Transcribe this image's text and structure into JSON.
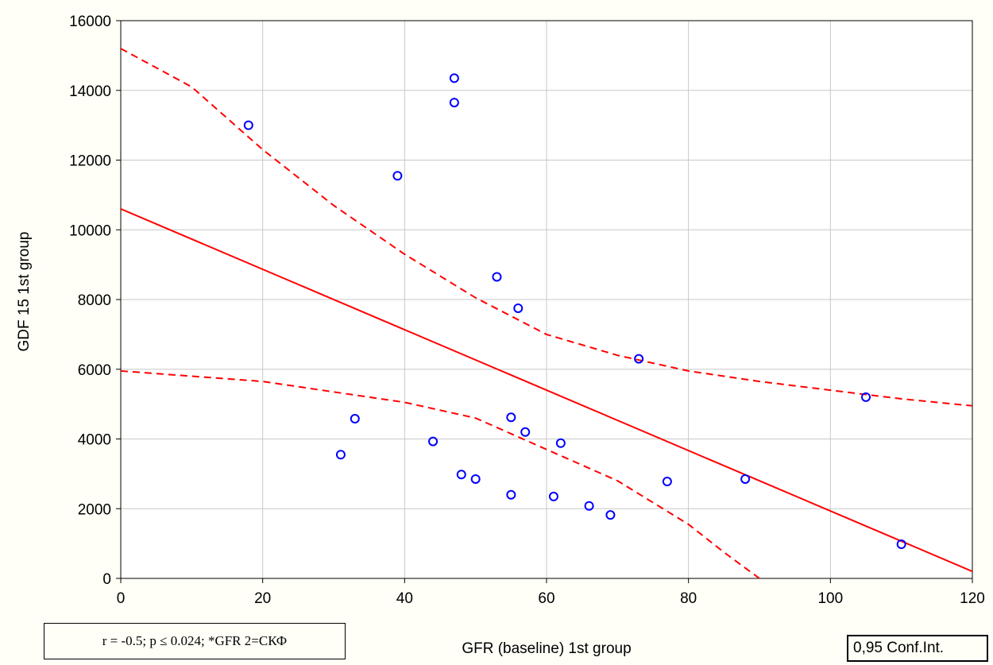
{
  "chart_data": {
    "type": "scatter",
    "xlabel": "GFR (baseline) 1st group",
    "ylabel": "GDF 15  1st group",
    "xlim": [
      0,
      120
    ],
    "ylim": [
      0,
      16000
    ],
    "x_ticks": [
      0,
      20,
      40,
      60,
      80,
      100,
      120
    ],
    "y_ticks": [
      0,
      2000,
      4000,
      6000,
      8000,
      10000,
      12000,
      14000,
      16000
    ],
    "grid": true,
    "points": [
      {
        "x": 18,
        "y": 13000
      },
      {
        "x": 31,
        "y": 3550
      },
      {
        "x": 33,
        "y": 4580
      },
      {
        "x": 39,
        "y": 11550
      },
      {
        "x": 44,
        "y": 3930
      },
      {
        "x": 47,
        "y": 14350
      },
      {
        "x": 47,
        "y": 13650
      },
      {
        "x": 48,
        "y": 2980
      },
      {
        "x": 50,
        "y": 2850
      },
      {
        "x": 53,
        "y": 8650
      },
      {
        "x": 55,
        "y": 4620
      },
      {
        "x": 55,
        "y": 2400
      },
      {
        "x": 56,
        "y": 7750
      },
      {
        "x": 57,
        "y": 4200
      },
      {
        "x": 61,
        "y": 2350
      },
      {
        "x": 62,
        "y": 3880
      },
      {
        "x": 66,
        "y": 2080
      },
      {
        "x": 69,
        "y": 1820
      },
      {
        "x": 73,
        "y": 6300
      },
      {
        "x": 77,
        "y": 2780
      },
      {
        "x": 88,
        "y": 2850
      },
      {
        "x": 105,
        "y": 5200
      },
      {
        "x": 110,
        "y": 980
      }
    ],
    "regression_line": [
      [
        0,
        10600
      ],
      [
        120,
        200
      ]
    ],
    "ci_upper": [
      [
        0,
        15200
      ],
      [
        10,
        14100
      ],
      [
        20,
        12300
      ],
      [
        30,
        10700
      ],
      [
        40,
        9300
      ],
      [
        50,
        8050
      ],
      [
        60,
        7000
      ],
      [
        70,
        6400
      ],
      [
        80,
        5950
      ],
      [
        90,
        5650
      ],
      [
        100,
        5400
      ],
      [
        110,
        5150
      ],
      [
        120,
        4950
      ]
    ],
    "ci_lower": [
      [
        0,
        5950
      ],
      [
        10,
        5800
      ],
      [
        20,
        5650
      ],
      [
        30,
        5350
      ],
      [
        40,
        5050
      ],
      [
        50,
        4600
      ],
      [
        60,
        3700
      ],
      [
        70,
        2800
      ],
      [
        80,
        1550
      ],
      [
        85,
        750
      ],
      [
        90,
        0
      ]
    ],
    "stats_text": "r = -0.5; p ≤ 0.024; *GFR 2=СКФ",
    "legend_text": "0,95 Conf.Int.",
    "colors": {
      "points": "#0000ff",
      "lines": "#ff0000",
      "grid": "#c8c8c8",
      "background": "#fffff7"
    }
  }
}
